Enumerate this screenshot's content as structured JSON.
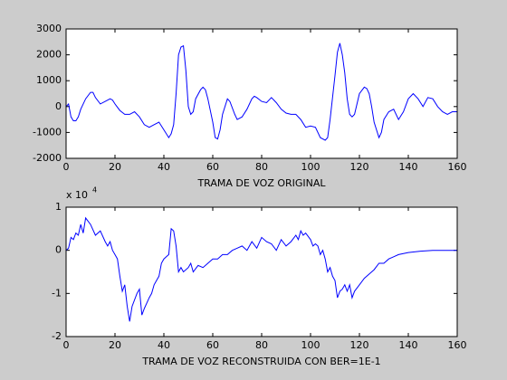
{
  "chart_data": [
    {
      "type": "line",
      "xlabel": "TRAMA DE VOZ ORIGINAL",
      "color": "#0000ff",
      "x": [
        0,
        1,
        2,
        3,
        4,
        5,
        6,
        8,
        10,
        11,
        12,
        14,
        16,
        18,
        19,
        20,
        22,
        24,
        26,
        28,
        30,
        32,
        34,
        36,
        38,
        40,
        42,
        43,
        44,
        45,
        46,
        47,
        48,
        49,
        50,
        51,
        52,
        53,
        55,
        56,
        57,
        58,
        60,
        61,
        62,
        63,
        64,
        66,
        67,
        69,
        70,
        72,
        74,
        76,
        77,
        78,
        80,
        82,
        84,
        86,
        88,
        90,
        92,
        94,
        96,
        98,
        100,
        102,
        104,
        106,
        107,
        108,
        110,
        111,
        112,
        113,
        114,
        115,
        116,
        117,
        118,
        120,
        122,
        123,
        124,
        125,
        126,
        128,
        129,
        130,
        132,
        134,
        136,
        138,
        140,
        142,
        144,
        146,
        148,
        150,
        152,
        154,
        156,
        158,
        160
      ],
      "values": [
        0,
        100,
        -400,
        -550,
        -550,
        -400,
        -100,
        300,
        550,
        550,
        350,
        100,
        200,
        300,
        250,
        100,
        -150,
        -300,
        -300,
        -200,
        -400,
        -700,
        -800,
        -700,
        -600,
        -900,
        -1200,
        -1050,
        -700,
        500,
        2000,
        2300,
        2350,
        1400,
        0,
        -300,
        -200,
        300,
        650,
        750,
        650,
        300,
        -600,
        -1200,
        -1250,
        -900,
        -300,
        300,
        200,
        -300,
        -500,
        -400,
        -100,
        300,
        400,
        350,
        200,
        150,
        350,
        150,
        -100,
        -250,
        -300,
        -300,
        -500,
        -800,
        -750,
        -800,
        -1200,
        -1300,
        -1200,
        -500,
        1200,
        2100,
        2450,
        2000,
        1300,
        300,
        -300,
        -400,
        -300,
        500,
        750,
        700,
        500,
        0,
        -600,
        -1200,
        -1000,
        -500,
        -200,
        -100,
        -500,
        -200,
        300,
        500,
        300,
        0,
        350,
        300,
        0,
        -200,
        -300,
        -200,
        -200
      ],
      "xlim": [
        0,
        160
      ],
      "xticks": [
        0,
        20,
        40,
        60,
        80,
        100,
        120,
        140,
        160
      ],
      "ylim": [
        -2000,
        3000
      ],
      "yticks": [
        -2000,
        -1000,
        0,
        1000,
        2000,
        3000
      ]
    },
    {
      "type": "line",
      "xlabel": "TRAMA DE VOZ RECONSTRUIDA CON BER=1E-1",
      "color": "#0000ff",
      "y_multiplier": "x 10",
      "y_multiplier_exp": "4",
      "x": [
        0,
        1,
        2,
        3,
        4,
        5,
        6,
        7,
        8,
        10,
        12,
        14,
        16,
        17,
        18,
        19,
        20,
        21,
        22,
        23,
        24,
        25,
        26,
        27,
        29,
        30,
        31,
        32,
        34,
        35,
        36,
        37,
        38,
        39,
        40,
        41,
        42,
        43,
        44,
        45,
        46,
        47,
        48,
        50,
        51,
        52,
        54,
        56,
        58,
        60,
        62,
        64,
        66,
        68,
        70,
        72,
        74,
        76,
        78,
        80,
        82,
        84,
        86,
        88,
        90,
        92,
        94,
        95,
        96,
        97,
        98,
        100,
        101,
        102,
        103,
        104,
        105,
        106,
        107,
        108,
        109,
        110,
        111,
        112,
        113,
        114,
        115,
        116,
        117,
        118,
        120,
        122,
        124,
        126,
        128,
        130,
        132,
        134,
        136,
        140,
        145,
        150,
        155,
        160
      ],
      "values": [
        0,
        0.05,
        0.3,
        0.25,
        0.4,
        0.35,
        0.6,
        0.4,
        0.75,
        0.6,
        0.35,
        0.45,
        0.2,
        0.1,
        0.2,
        0,
        -0.1,
        -0.2,
        -0.6,
        -0.95,
        -0.8,
        -1.3,
        -1.65,
        -1.3,
        -1,
        -0.9,
        -1.5,
        -1.35,
        -1.1,
        -1,
        -0.8,
        -0.7,
        -0.6,
        -0.3,
        -0.2,
        -0.15,
        -0.1,
        0.5,
        0.45,
        0.1,
        -0.5,
        -0.4,
        -0.5,
        -0.4,
        -0.3,
        -0.5,
        -0.35,
        -0.4,
        -0.3,
        -0.2,
        -0.2,
        -0.1,
        -0.1,
        0,
        0.05,
        0.1,
        0,
        0.2,
        0.05,
        0.3,
        0.2,
        0.15,
        0,
        0.25,
        0.1,
        0.2,
        0.35,
        0.25,
        0.45,
        0.35,
        0.4,
        0.25,
        0.1,
        0.15,
        0.1,
        -0.1,
        0,
        -0.2,
        -0.5,
        -0.4,
        -0.6,
        -0.7,
        -1.1,
        -0.95,
        -0.9,
        -0.8,
        -0.95,
        -0.8,
        -1.1,
        -0.95,
        -0.8,
        -0.65,
        -0.55,
        -0.45,
        -0.3,
        -0.3,
        -0.2,
        -0.15,
        -0.1,
        -0.05,
        -0.02,
        0,
        0,
        0
      ],
      "xlim": [
        0,
        160
      ],
      "xticks": [
        0,
        20,
        40,
        60,
        80,
        100,
        120,
        140,
        160
      ],
      "ylim": [
        -2,
        1
      ],
      "yticks": [
        -2,
        -1,
        0,
        1
      ]
    }
  ]
}
